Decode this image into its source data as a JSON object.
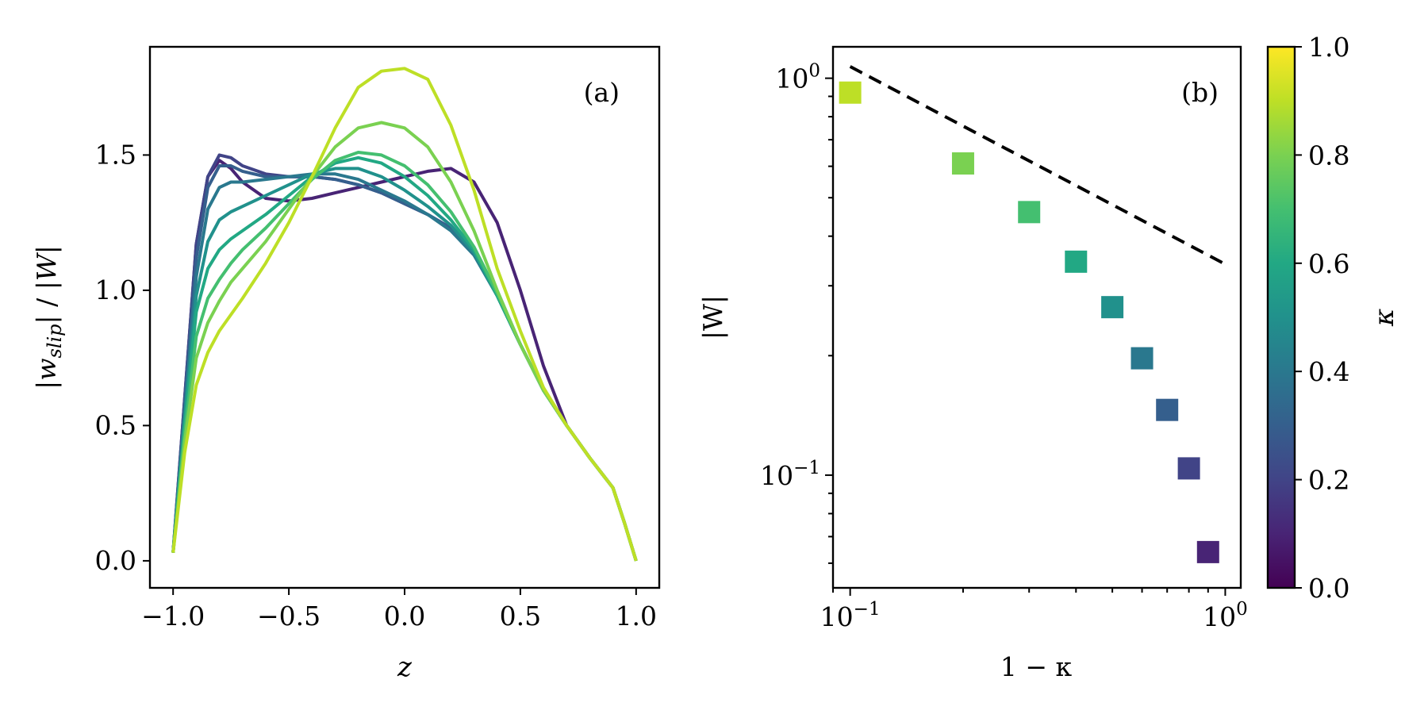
{
  "chart_data": [
    {
      "panel": "a",
      "type": "line",
      "panel_label": "(a)",
      "xlabel": "z",
      "ylabel": "|w_slip| / |W|",
      "ylabel_parts": {
        "bar_open": "|",
        "main": "w",
        "sub": "slip",
        "mid": "| / |",
        "W": "W",
        "bar_close": "|"
      },
      "xlim": [
        -1.1,
        1.1
      ],
      "ylim": [
        -0.1,
        1.9
      ],
      "xticks": [
        -1.0,
        -0.5,
        0.0,
        0.5,
        1.0
      ],
      "xtick_labels": [
        "−1.0",
        "−0.5",
        "0.0",
        "0.5",
        "1.0"
      ],
      "yticks": [
        0.0,
        0.5,
        1.0,
        1.5
      ],
      "ytick_labels": [
        "0.0",
        "0.5",
        "1.0",
        "1.5"
      ],
      "series": [
        {
          "kappa": 0.1,
          "color": "#482475",
          "x": [
            -1.0,
            -0.95,
            -0.9,
            -0.85,
            -0.8,
            -0.75,
            -0.7,
            -0.6,
            -0.5,
            -0.4,
            -0.3,
            -0.2,
            -0.1,
            0.0,
            0.1,
            0.2,
            0.3,
            0.4,
            0.5,
            0.6,
            0.7,
            0.8,
            0.9,
            0.95,
            1.0
          ],
          "y": [
            0.03,
            0.6,
            1.17,
            1.42,
            1.48,
            1.45,
            1.4,
            1.34,
            1.33,
            1.34,
            1.36,
            1.38,
            1.4,
            1.42,
            1.44,
            1.45,
            1.4,
            1.25,
            1.0,
            0.72,
            0.5,
            0.38,
            0.27,
            0.14,
            0.0
          ]
        },
        {
          "kappa": 0.2,
          "color": "#414487",
          "x": [
            -1.0,
            -0.95,
            -0.9,
            -0.85,
            -0.8,
            -0.75,
            -0.7,
            -0.6,
            -0.5,
            -0.4,
            -0.3,
            -0.2,
            -0.1,
            0.0,
            0.1,
            0.2,
            0.3,
            0.4,
            0.5,
            0.6,
            0.7,
            0.8,
            0.9,
            0.95,
            1.0
          ],
          "y": [
            0.03,
            0.6,
            1.17,
            1.42,
            1.5,
            1.49,
            1.46,
            1.43,
            1.42,
            1.42,
            1.41,
            1.39,
            1.36,
            1.32,
            1.28,
            1.23,
            1.14,
            0.98,
            0.8,
            0.63,
            0.5,
            0.38,
            0.27,
            0.14,
            0.0
          ]
        },
        {
          "kappa": 0.3,
          "color": "#355f8d",
          "x": [
            -1.0,
            -0.95,
            -0.9,
            -0.85,
            -0.8,
            -0.75,
            -0.7,
            -0.6,
            -0.5,
            -0.4,
            -0.3,
            -0.2,
            -0.1,
            0.0,
            0.1,
            0.2,
            0.3,
            0.4,
            0.5,
            0.6,
            0.7,
            0.8,
            0.9,
            0.95,
            1.0
          ],
          "y": [
            0.03,
            0.58,
            1.12,
            1.38,
            1.46,
            1.46,
            1.44,
            1.42,
            1.42,
            1.42,
            1.41,
            1.39,
            1.36,
            1.32,
            1.28,
            1.23,
            1.14,
            0.98,
            0.8,
            0.63,
            0.5,
            0.38,
            0.27,
            0.14,
            0.0
          ]
        },
        {
          "kappa": 0.4,
          "color": "#2a788e",
          "x": [
            -1.0,
            -0.95,
            -0.9,
            -0.85,
            -0.8,
            -0.75,
            -0.7,
            -0.6,
            -0.5,
            -0.4,
            -0.3,
            -0.2,
            -0.1,
            0.0,
            0.1,
            0.2,
            0.3,
            0.4,
            0.5,
            0.6,
            0.7,
            0.8,
            0.9,
            0.95,
            1.0
          ],
          "y": [
            0.03,
            0.55,
            1.05,
            1.3,
            1.38,
            1.4,
            1.4,
            1.41,
            1.42,
            1.43,
            1.43,
            1.41,
            1.37,
            1.33,
            1.28,
            1.22,
            1.13,
            0.98,
            0.8,
            0.63,
            0.5,
            0.38,
            0.27,
            0.14,
            0.0
          ]
        },
        {
          "kappa": 0.5,
          "color": "#21918c",
          "x": [
            -1.0,
            -0.95,
            -0.9,
            -0.85,
            -0.8,
            -0.75,
            -0.7,
            -0.6,
            -0.5,
            -0.4,
            -0.3,
            -0.2,
            -0.1,
            0.0,
            0.1,
            0.2,
            0.3,
            0.4,
            0.5,
            0.6,
            0.7,
            0.8,
            0.9,
            0.95,
            1.0
          ],
          "y": [
            0.03,
            0.52,
            0.98,
            1.18,
            1.26,
            1.29,
            1.31,
            1.35,
            1.39,
            1.43,
            1.45,
            1.45,
            1.42,
            1.37,
            1.31,
            1.24,
            1.14,
            0.98,
            0.8,
            0.63,
            0.5,
            0.38,
            0.27,
            0.14,
            0.0
          ]
        },
        {
          "kappa": 0.6,
          "color": "#22a884",
          "x": [
            -1.0,
            -0.95,
            -0.9,
            -0.85,
            -0.8,
            -0.75,
            -0.7,
            -0.6,
            -0.5,
            -0.4,
            -0.3,
            -0.2,
            -0.1,
            0.0,
            0.1,
            0.2,
            0.3,
            0.4,
            0.5,
            0.6,
            0.7,
            0.8,
            0.9,
            0.95,
            1.0
          ],
          "y": [
            0.03,
            0.5,
            0.92,
            1.08,
            1.15,
            1.19,
            1.22,
            1.28,
            1.35,
            1.42,
            1.47,
            1.49,
            1.47,
            1.42,
            1.35,
            1.26,
            1.15,
            0.98,
            0.8,
            0.63,
            0.5,
            0.38,
            0.27,
            0.14,
            0.0
          ]
        },
        {
          "kappa": 0.7,
          "color": "#44bf70",
          "x": [
            -1.0,
            -0.95,
            -0.9,
            -0.85,
            -0.8,
            -0.75,
            -0.7,
            -0.6,
            -0.5,
            -0.4,
            -0.3,
            -0.2,
            -0.1,
            0.0,
            0.1,
            0.2,
            0.3,
            0.4,
            0.5,
            0.6,
            0.7,
            0.8,
            0.9,
            0.95,
            1.0
          ],
          "y": [
            0.03,
            0.47,
            0.83,
            0.97,
            1.04,
            1.1,
            1.15,
            1.23,
            1.32,
            1.41,
            1.48,
            1.51,
            1.5,
            1.46,
            1.39,
            1.29,
            1.16,
            0.99,
            0.8,
            0.63,
            0.5,
            0.38,
            0.27,
            0.14,
            0.0
          ]
        },
        {
          "kappa": 0.8,
          "color": "#7ad151",
          "x": [
            -1.0,
            -0.95,
            -0.9,
            -0.85,
            -0.8,
            -0.75,
            -0.7,
            -0.6,
            -0.5,
            -0.4,
            -0.3,
            -0.2,
            -0.1,
            0.0,
            0.1,
            0.2,
            0.3,
            0.4,
            0.5,
            0.6,
            0.7,
            0.8,
            0.9,
            0.95,
            1.0
          ],
          "y": [
            0.03,
            0.44,
            0.75,
            0.88,
            0.96,
            1.03,
            1.08,
            1.18,
            1.3,
            1.42,
            1.53,
            1.6,
            1.62,
            1.6,
            1.53,
            1.4,
            1.22,
            1.0,
            0.8,
            0.63,
            0.5,
            0.38,
            0.27,
            0.14,
            0.0
          ]
        },
        {
          "kappa": 0.9,
          "color": "#bddf26",
          "x": [
            -1.0,
            -0.95,
            -0.9,
            -0.85,
            -0.8,
            -0.75,
            -0.7,
            -0.6,
            -0.5,
            -0.4,
            -0.3,
            -0.2,
            -0.1,
            0.0,
            0.1,
            0.2,
            0.3,
            0.4,
            0.5,
            0.6,
            0.7,
            0.8,
            0.9,
            0.95,
            1.0
          ],
          "y": [
            0.03,
            0.4,
            0.65,
            0.77,
            0.85,
            0.91,
            0.97,
            1.1,
            1.25,
            1.42,
            1.6,
            1.75,
            1.81,
            1.82,
            1.78,
            1.61,
            1.37,
            1.08,
            0.85,
            0.64,
            0.5,
            0.38,
            0.27,
            0.14,
            0.0
          ]
        }
      ]
    },
    {
      "panel": "b",
      "type": "scatter",
      "panel_label": "(b)",
      "xlabel": "1 − κ",
      "ylabel": "|W|",
      "xscale": "log",
      "yscale": "log",
      "xlim": [
        0.09,
        1.1
      ],
      "ylim": [
        0.052,
        1.2
      ],
      "xtick_base": "10",
      "xtick_exps": [
        "−1",
        "0"
      ],
      "ytick_base": "10",
      "ytick_exps": [
        "0",
        "−1"
      ],
      "points": [
        {
          "x": 0.1,
          "y": 0.92,
          "kappa": 0.9,
          "color": "#bddf26"
        },
        {
          "x": 0.2,
          "y": 0.61,
          "kappa": 0.8,
          "color": "#7ad151"
        },
        {
          "x": 0.3,
          "y": 0.46,
          "kappa": 0.7,
          "color": "#44bf70"
        },
        {
          "x": 0.4,
          "y": 0.345,
          "kappa": 0.6,
          "color": "#22a884"
        },
        {
          "x": 0.5,
          "y": 0.265,
          "kappa": 0.5,
          "color": "#21918c"
        },
        {
          "x": 0.6,
          "y": 0.197,
          "kappa": 0.4,
          "color": "#2a788e"
        },
        {
          "x": 0.7,
          "y": 0.146,
          "kappa": 0.3,
          "color": "#355f8d"
        },
        {
          "x": 0.8,
          "y": 0.104,
          "kappa": 0.2,
          "color": "#414487"
        },
        {
          "x": 0.9,
          "y": 0.064,
          "kappa": 0.1,
          "color": "#482475"
        }
      ],
      "reference_line": {
        "style": "dashed",
        "color": "#000000",
        "x": [
          0.1,
          1.0
        ],
        "y": [
          1.07,
          0.34
        ]
      }
    }
  ],
  "colorbar": {
    "label": "κ",
    "range": [
      0.0,
      1.0
    ],
    "ticks": [
      0.0,
      0.2,
      0.4,
      0.6,
      0.8,
      1.0
    ],
    "tick_labels": [
      "0.0",
      "0.2",
      "0.4",
      "0.6",
      "0.8",
      "1.0"
    ],
    "colors": [
      "#440154",
      "#482475",
      "#414487",
      "#355f8d",
      "#2a788e",
      "#21918c",
      "#22a884",
      "#44bf70",
      "#7ad151",
      "#bddf26",
      "#fde725"
    ]
  }
}
